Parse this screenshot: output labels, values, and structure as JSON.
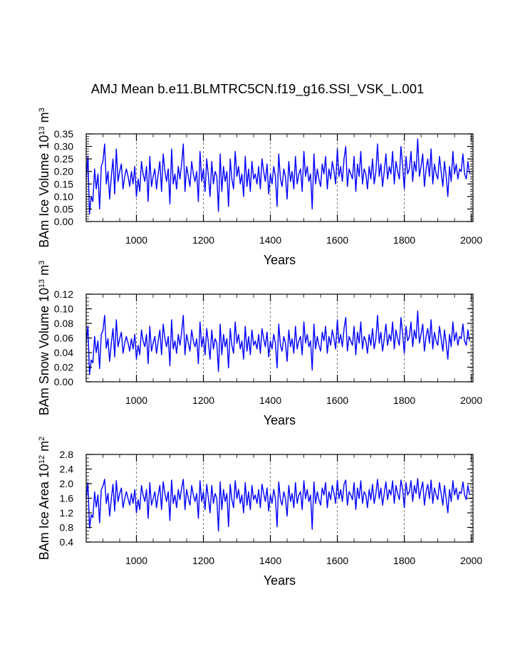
{
  "title": "AMJ Mean b.e11.BLMTRC5CN.f19_g16.SSI_VSK_L.001",
  "colors": {
    "series": "#0000ff",
    "axis": "#000000",
    "grid": "#555555"
  },
  "chart_data": [
    {
      "type": "line",
      "xlabel": "Years",
      "ylabel": {
        "prefix": "BAm Ice Volume 10",
        "exp": "13",
        "unit": " m",
        "unit_exp": "3"
      },
      "xlim": [
        850,
        2005
      ],
      "ylim": [
        0,
        0.35
      ],
      "x_ticks": [
        1000,
        1200,
        1400,
        1600,
        1800,
        2000
      ],
      "x_tick_labels": [
        "1000",
        "1200",
        "1400",
        "1600",
        "1800",
        "2000"
      ],
      "y_ticks": [
        0,
        0.05,
        0.1,
        0.15,
        0.2,
        0.25,
        0.3,
        0.35
      ],
      "y_tick_labels": [
        "0.00",
        "0.05",
        "0.10",
        "0.15",
        "0.20",
        "0.25",
        "0.30",
        "0.35"
      ],
      "x_minor_step": 50,
      "y_minor_step": 0.01,
      "grid": "vertical dashed at major x ticks",
      "series": [
        {
          "x_start": 850,
          "x_step": 5,
          "color": "#0000ff",
          "values": [
            0.17,
            0.26,
            0.03,
            0.1,
            0.08,
            0.21,
            0.13,
            0.19,
            0.05,
            0.22,
            0.24,
            0.31,
            0.15,
            0.2,
            0.09,
            0.18,
            0.25,
            0.11,
            0.29,
            0.16,
            0.2,
            0.23,
            0.13,
            0.18,
            0.21,
            0.18,
            0.14,
            0.2,
            0.15,
            0.22,
            0.1,
            0.17,
            0.12,
            0.24,
            0.19,
            0.16,
            0.22,
            0.08,
            0.26,
            0.14,
            0.18,
            0.21,
            0.13,
            0.19,
            0.24,
            0.12,
            0.27,
            0.2,
            0.16,
            0.21,
            0.07,
            0.29,
            0.15,
            0.19,
            0.13,
            0.22,
            0.17,
            0.23,
            0.31,
            0.12,
            0.22,
            0.18,
            0.14,
            0.24,
            0.19,
            0.16,
            0.2,
            0.08,
            0.28,
            0.16,
            0.21,
            0.12,
            0.25,
            0.18,
            0.1,
            0.24,
            0.15,
            0.2,
            0.18,
            0.04,
            0.27,
            0.12,
            0.22,
            0.16,
            0.2,
            0.06,
            0.25,
            0.17,
            0.13,
            0.28,
            0.18,
            0.22,
            0.15,
            0.19,
            0.1,
            0.26,
            0.14,
            0.21,
            0.12,
            0.24,
            0.17,
            0.19,
            0.15,
            0.22,
            0.13,
            0.25,
            0.2,
            0.16,
            0.23,
            0.11,
            0.19,
            0.15,
            0.22,
            0.18,
            0.06,
            0.27,
            0.17,
            0.14,
            0.21,
            0.18,
            0.09,
            0.24,
            0.16,
            0.2,
            0.13,
            0.26,
            0.15,
            0.19,
            0.21,
            0.12,
            0.28,
            0.18,
            0.22,
            0.16,
            0.19,
            0.05,
            0.27,
            0.15,
            0.21,
            0.17,
            0.14,
            0.23,
            0.19,
            0.26,
            0.13,
            0.21,
            0.17,
            0.24,
            0.2,
            0.15,
            0.29,
            0.18,
            0.22,
            0.16,
            0.25,
            0.3,
            0.14,
            0.21,
            0.19,
            0.17,
            0.26,
            0.12,
            0.23,
            0.18,
            0.28,
            0.15,
            0.21,
            0.19,
            0.13,
            0.22,
            0.17,
            0.25,
            0.15,
            0.2,
            0.31,
            0.18,
            0.23,
            0.14,
            0.2,
            0.27,
            0.17,
            0.22,
            0.19,
            0.28,
            0.15,
            0.24,
            0.2,
            0.17,
            0.3,
            0.22,
            0.13,
            0.26,
            0.19,
            0.21,
            0.28,
            0.16,
            0.24,
            0.2,
            0.33,
            0.18,
            0.22,
            0.27,
            0.14,
            0.21,
            0.25,
            0.18,
            0.29,
            0.15,
            0.23,
            0.19,
            0.17,
            0.26,
            0.2,
            0.14,
            0.24,
            0.18,
            0.1,
            0.22,
            0.16,
            0.28,
            0.19,
            0.23,
            0.17,
            0.21,
            0.2,
            0.27,
            0.19,
            0.17,
            0.24,
            0.19
          ]
        }
      ]
    },
    {
      "type": "line",
      "xlabel": "Years",
      "ylabel": {
        "prefix": "BAm Snow Volume 10",
        "exp": "13",
        "unit": " m",
        "unit_exp": "3"
      },
      "xlim": [
        850,
        2005
      ],
      "ylim": [
        0,
        0.12
      ],
      "x_ticks": [
        1000,
        1200,
        1400,
        1600,
        1800,
        2000
      ],
      "x_tick_labels": [
        "1000",
        "1200",
        "1400",
        "1600",
        "1800",
        "2000"
      ],
      "y_ticks": [
        0,
        0.02,
        0.04,
        0.06,
        0.08,
        0.1,
        0.12
      ],
      "y_tick_labels": [
        "0.00",
        "0.02",
        "0.04",
        "0.06",
        "0.08",
        "0.10",
        "0.12"
      ],
      "x_minor_step": 50,
      "y_minor_step": 0.005,
      "grid": "vertical dashed at major x ticks",
      "series": [
        {
          "x_start": 850,
          "x_step": 5,
          "color": "#0000ff",
          "values": [
            0.053,
            0.076,
            0.01,
            0.03,
            0.026,
            0.062,
            0.04,
            0.056,
            0.018,
            0.065,
            0.07,
            0.091,
            0.046,
            0.059,
            0.028,
            0.053,
            0.073,
            0.034,
            0.085,
            0.048,
            0.059,
            0.068,
            0.039,
            0.053,
            0.062,
            0.053,
            0.042,
            0.059,
            0.045,
            0.065,
            0.031,
            0.05,
            0.037,
            0.071,
            0.056,
            0.048,
            0.065,
            0.025,
            0.076,
            0.042,
            0.053,
            0.062,
            0.039,
            0.056,
            0.071,
            0.037,
            0.079,
            0.059,
            0.048,
            0.062,
            0.022,
            0.085,
            0.045,
            0.056,
            0.039,
            0.065,
            0.05,
            0.068,
            0.091,
            0.037,
            0.065,
            0.053,
            0.042,
            0.071,
            0.056,
            0.048,
            0.059,
            0.025,
            0.082,
            0.048,
            0.062,
            0.037,
            0.073,
            0.053,
            0.031,
            0.071,
            0.045,
            0.059,
            0.053,
            0.014,
            0.079,
            0.037,
            0.065,
            0.048,
            0.059,
            0.019,
            0.073,
            0.05,
            0.039,
            0.082,
            0.053,
            0.065,
            0.045,
            0.056,
            0.031,
            0.076,
            0.042,
            0.062,
            0.037,
            0.071,
            0.05,
            0.056,
            0.045,
            0.065,
            0.039,
            0.073,
            0.059,
            0.048,
            0.068,
            0.034,
            0.056,
            0.045,
            0.065,
            0.053,
            0.019,
            0.079,
            0.05,
            0.042,
            0.062,
            0.053,
            0.028,
            0.071,
            0.048,
            0.059,
            0.039,
            0.076,
            0.045,
            0.056,
            0.062,
            0.037,
            0.082,
            0.053,
            0.065,
            0.048,
            0.056,
            0.016,
            0.079,
            0.045,
            0.062,
            0.05,
            0.042,
            0.068,
            0.056,
            0.076,
            0.039,
            0.062,
            0.05,
            0.071,
            0.059,
            0.045,
            0.085,
            0.053,
            0.065,
            0.048,
            0.073,
            0.088,
            0.042,
            0.062,
            0.056,
            0.05,
            0.076,
            0.037,
            0.068,
            0.053,
            0.082,
            0.045,
            0.062,
            0.056,
            0.039,
            0.065,
            0.05,
            0.073,
            0.045,
            0.059,
            0.091,
            0.053,
            0.068,
            0.042,
            0.059,
            0.079,
            0.05,
            0.065,
            0.056,
            0.082,
            0.045,
            0.071,
            0.059,
            0.05,
            0.088,
            0.065,
            0.039,
            0.076,
            0.056,
            0.062,
            0.082,
            0.048,
            0.071,
            0.059,
            0.097,
            0.053,
            0.065,
            0.079,
            0.042,
            0.062,
            0.073,
            0.053,
            0.085,
            0.045,
            0.068,
            0.056,
            0.05,
            0.076,
            0.059,
            0.042,
            0.071,
            0.053,
            0.031,
            0.065,
            0.048,
            0.082,
            0.056,
            0.068,
            0.05,
            0.062,
            0.059,
            0.079,
            0.056,
            0.05,
            0.071,
            0.056
          ]
        }
      ]
    },
    {
      "type": "line",
      "xlabel": "Years",
      "ylabel": {
        "prefix": "BAm Ice Area 10",
        "exp": "12",
        "unit": " m",
        "unit_exp": "2"
      },
      "xlim": [
        850,
        2005
      ],
      "ylim": [
        0.4,
        2.8
      ],
      "x_ticks": [
        1000,
        1200,
        1400,
        1600,
        1800,
        2000
      ],
      "x_tick_labels": [
        "1000",
        "1200",
        "1400",
        "1600",
        "1800",
        "2000"
      ],
      "y_ticks": [
        0.4,
        0.8,
        1.2,
        1.6,
        2.0,
        2.4,
        2.8
      ],
      "y_tick_labels": [
        "0.4",
        "0.8",
        "1.2",
        "1.6",
        "2.0",
        "2.4",
        "2.8"
      ],
      "x_minor_step": 50,
      "y_minor_step": 0.1,
      "grid": "vertical dashed at major x ticks",
      "series": [
        {
          "x_start": 850,
          "x_step": 5,
          "color": "#0000ff",
          "values": [
            1.59,
            2.03,
            0.78,
            1.15,
            1.07,
            1.78,
            1.36,
            1.69,
            0.93,
            1.84,
            1.93,
            2.12,
            1.46,
            1.73,
            1.11,
            1.59,
            1.98,
            1.25,
            2.08,
            1.51,
            1.73,
            1.88,
            1.34,
            1.59,
            1.78,
            1.59,
            1.41,
            1.73,
            1.46,
            1.84,
            1.2,
            1.56,
            1.29,
            1.95,
            1.69,
            1.51,
            1.84,
            1.05,
            2.03,
            1.41,
            1.59,
            1.78,
            1.34,
            1.69,
            1.95,
            1.29,
            2.05,
            1.73,
            1.51,
            1.78,
            0.99,
            2.1,
            1.46,
            1.69,
            1.34,
            1.84,
            1.56,
            1.88,
            2.12,
            1.29,
            1.84,
            1.59,
            1.41,
            1.95,
            1.69,
            1.51,
            1.73,
            1.05,
            2.08,
            1.51,
            1.78,
            1.29,
            1.98,
            1.59,
            1.2,
            1.95,
            1.46,
            1.73,
            1.59,
            0.7,
            2.05,
            1.29,
            1.84,
            1.51,
            1.73,
            0.82,
            1.98,
            1.56,
            1.34,
            2.08,
            1.59,
            1.84,
            1.46,
            1.69,
            1.2,
            2.03,
            1.41,
            1.78,
            1.29,
            1.95,
            1.56,
            1.69,
            1.46,
            1.84,
            1.34,
            1.98,
            1.73,
            1.51,
            1.88,
            1.25,
            1.69,
            1.46,
            1.84,
            1.59,
            0.82,
            2.05,
            1.56,
            1.41,
            1.78,
            1.59,
            1.11,
            1.95,
            1.51,
            1.73,
            1.34,
            2.03,
            1.46,
            1.69,
            1.78,
            1.29,
            2.08,
            1.59,
            1.84,
            1.51,
            1.69,
            0.75,
            2.05,
            1.46,
            1.78,
            1.56,
            1.41,
            1.88,
            1.69,
            2.03,
            1.34,
            1.78,
            1.56,
            1.95,
            1.73,
            1.46,
            2.1,
            1.59,
            1.84,
            1.51,
            1.98,
            2.1,
            1.41,
            1.78,
            1.69,
            1.56,
            2.03,
            1.29,
            1.88,
            1.59,
            2.08,
            1.46,
            1.78,
            1.69,
            1.34,
            1.84,
            1.56,
            1.98,
            1.46,
            1.73,
            2.12,
            1.59,
            1.88,
            1.41,
            1.73,
            2.05,
            1.56,
            1.84,
            1.69,
            2.08,
            1.46,
            1.95,
            1.73,
            1.56,
            2.1,
            1.84,
            1.34,
            2.03,
            1.69,
            1.78,
            2.08,
            1.51,
            1.95,
            1.73,
            2.14,
            1.59,
            1.84,
            2.05,
            1.41,
            1.78,
            1.98,
            1.59,
            2.1,
            1.46,
            1.88,
            1.69,
            1.56,
            2.03,
            1.73,
            1.41,
            1.95,
            1.59,
            1.2,
            1.84,
            1.51,
            2.08,
            1.69,
            1.88,
            1.56,
            1.78,
            1.73,
            2.05,
            1.69,
            1.56,
            1.95,
            1.69
          ]
        }
      ]
    }
  ]
}
